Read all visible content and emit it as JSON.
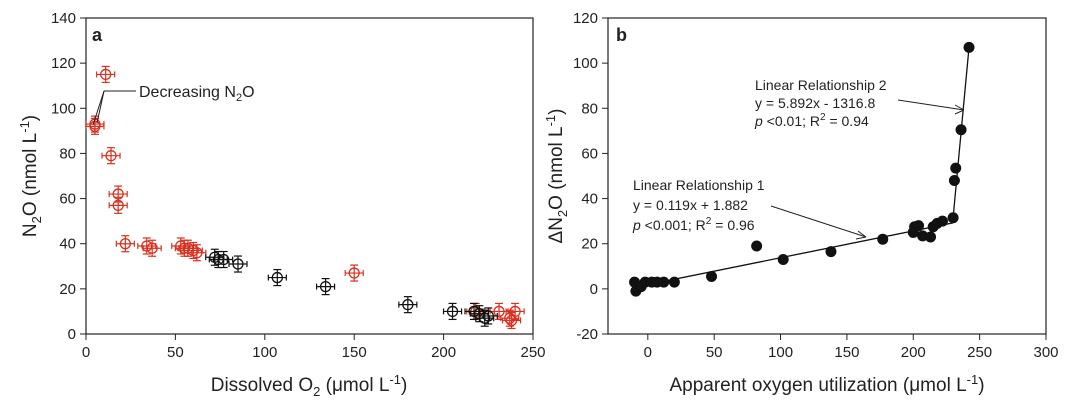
{
  "chart_data": [
    {
      "type": "scatter",
      "panel_label": "a",
      "xlim": [
        0,
        250
      ],
      "ylim": [
        0,
        140
      ],
      "xticks": [
        0,
        50,
        100,
        150,
        200,
        250
      ],
      "yticks": [
        0,
        20,
        40,
        60,
        80,
        100,
        120,
        140
      ],
      "xticklabels": [
        "0",
        "50",
        "100",
        "150",
        "200",
        "250"
      ],
      "yticklabels": [
        "0",
        "20",
        "40",
        "60",
        "80",
        "100",
        "120",
        "140"
      ],
      "xlabel": {
        "pre": "Dissolved O",
        "sub": "2",
        "post": " (μmol L",
        "sup": "-1",
        "tail": ")"
      },
      "ylabel": {
        "pre": "N",
        "sub": "2",
        "post": "O (nmol L",
        "sup": "-1",
        "tail": ")"
      },
      "annotation": {
        "pre": "Decreasing N",
        "sub": "2",
        "post": "O"
      },
      "grid": false,
      "series": [
        {
          "color": "#d9301f",
          "marker": "open-circle-errorbar",
          "points": [
            [
              5,
              93
            ],
            [
              5,
              92
            ],
            [
              11,
              115
            ],
            [
              14,
              79
            ],
            [
              18,
              62
            ],
            [
              18,
              57
            ],
            [
              22,
              40
            ],
            [
              34,
              39
            ],
            [
              37,
              38
            ],
            [
              53,
              39
            ],
            [
              55,
              38
            ],
            [
              57,
              38
            ],
            [
              60,
              37
            ],
            [
              62,
              36
            ],
            [
              150,
              27
            ],
            [
              218,
              10
            ],
            [
              231,
              10
            ],
            [
              237,
              7
            ],
            [
              238,
              6
            ],
            [
              240,
              10
            ]
          ]
        },
        {
          "color": "#111111",
          "marker": "open-circle-errorbar",
          "points": [
            [
              72,
              34
            ],
            [
              74,
              33
            ],
            [
              77,
              33
            ],
            [
              85,
              31
            ],
            [
              107,
              25
            ],
            [
              134,
              21
            ],
            [
              180,
              13
            ],
            [
              205,
              10
            ],
            [
              217,
              10
            ],
            [
              220,
              9
            ],
            [
              223,
              7
            ],
            [
              225,
              8
            ]
          ]
        }
      ]
    },
    {
      "type": "scatter",
      "panel_label": "b",
      "xlim": [
        -30,
        300
      ],
      "ylim": [
        -20,
        120
      ],
      "xticks": [
        0,
        50,
        100,
        150,
        200,
        250,
        300
      ],
      "yticks": [
        -20,
        0,
        20,
        40,
        60,
        80,
        100,
        120
      ],
      "xticklabels": [
        "0",
        "50",
        "100",
        "150",
        "200",
        "250",
        "300"
      ],
      "yticklabels": [
        "-20",
        "0",
        "20",
        "40",
        "60",
        "80",
        "100",
        "120"
      ],
      "xlabel": {
        "pre": "Apparent oxygen utilization (μmol L",
        "sup": "-1",
        "post": ")"
      },
      "ylabel": {
        "pre": "ΔN",
        "sub": "2",
        "post": "O (nmol L",
        "sup": "-1",
        "tail": ")"
      },
      "grid": false,
      "points": [
        [
          -10,
          3
        ],
        [
          -9,
          -1
        ],
        [
          -5,
          1
        ],
        [
          -2,
          3
        ],
        [
          3,
          3
        ],
        [
          7,
          3
        ],
        [
          12,
          3
        ],
        [
          20,
          3
        ],
        [
          48,
          5.5
        ],
        [
          82,
          19
        ],
        [
          102,
          13
        ],
        [
          138,
          16.5
        ],
        [
          177,
          22
        ],
        [
          200,
          25
        ],
        [
          201,
          27.5
        ],
        [
          204,
          28
        ],
        [
          207,
          23.5
        ],
        [
          213,
          23
        ],
        [
          215,
          27.5
        ],
        [
          218,
          29
        ],
        [
          222,
          30
        ],
        [
          230,
          31.5
        ],
        [
          231,
          48
        ],
        [
          232,
          53.5
        ],
        [
          236,
          70.5
        ],
        [
          242,
          107
        ]
      ],
      "point_color": "#111111",
      "fits": [
        {
          "label": "Linear Relationship 1",
          "equation": "y = 0.119x + 1.882",
          "stats": {
            "p": "p",
            "p_rest": " <0.001; R",
            "sup": "2",
            "r_rest": " = 0.96"
          },
          "x_range": [
            -10,
            230
          ],
          "slope": 0.119,
          "intercept": 1.882
        },
        {
          "label": "Linear Relationship 2",
          "equation": "y = 5.892x - 1316.8",
          "stats": {
            "p": "p",
            "p_rest": " <0.01; R",
            "sup": "2",
            "r_rest": " = 0.94"
          },
          "x_range": [
            230,
            242
          ],
          "y_range": [
            31.5,
            107
          ]
        }
      ]
    }
  ]
}
